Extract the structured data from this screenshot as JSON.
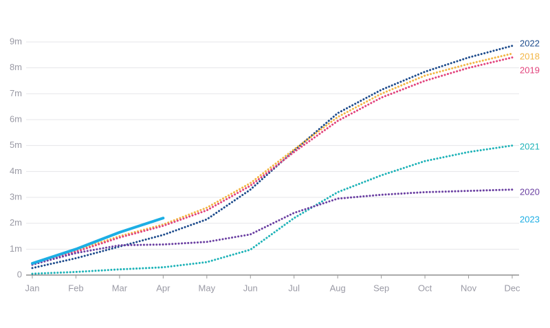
{
  "chart_data": {
    "type": "line",
    "categories": [
      "Jan",
      "Feb",
      "Mar",
      "Apr",
      "May",
      "Jun",
      "Jul",
      "Aug",
      "Sep",
      "Oct",
      "Nov",
      "Dec"
    ],
    "series": [
      {
        "name": "2022",
        "color": "#1d4b8c",
        "style": "dotted",
        "values": [
          0.27,
          0.65,
          1.1,
          1.55,
          2.15,
          3.3,
          4.8,
          6.25,
          7.15,
          7.85,
          8.4,
          8.85
        ]
      },
      {
        "name": "2018",
        "color": "#f2b544",
        "style": "dotted",
        "values": [
          0.4,
          0.95,
          1.5,
          1.95,
          2.6,
          3.55,
          4.85,
          6.1,
          7.0,
          7.7,
          8.15,
          8.55
        ]
      },
      {
        "name": "2019",
        "color": "#e2437c",
        "style": "dotted",
        "values": [
          0.4,
          0.9,
          1.45,
          1.9,
          2.5,
          3.45,
          4.75,
          5.95,
          6.85,
          7.5,
          8.0,
          8.4
        ]
      },
      {
        "name": "2021",
        "color": "#1fb3b8",
        "style": "dotted",
        "values": [
          0.05,
          0.12,
          0.22,
          0.3,
          0.5,
          0.98,
          2.2,
          3.2,
          3.85,
          4.4,
          4.75,
          5.0
        ]
      },
      {
        "name": "2020",
        "color": "#6b40a2",
        "style": "dotted",
        "values": [
          0.4,
          0.85,
          1.15,
          1.18,
          1.28,
          1.57,
          2.4,
          2.95,
          3.1,
          3.2,
          3.25,
          3.3
        ]
      },
      {
        "name": "2023",
        "color": "#1caee4",
        "style": "solid",
        "values": [
          0.45,
          1.0,
          1.65,
          2.2,
          null,
          null,
          null,
          null,
          null,
          null,
          null,
          null
        ]
      }
    ],
    "ylim": [
      0,
      9
    ],
    "yticks": [
      0,
      {
        "value": 1,
        "label": "1m"
      },
      {
        "value": 2,
        "label": "2m"
      },
      {
        "value": 3,
        "label": "3m"
      },
      {
        "value": 4,
        "label": "4m"
      },
      {
        "value": 5,
        "label": "5m"
      },
      {
        "value": 6,
        "label": "6m"
      },
      {
        "value": 7,
        "label": "7m"
      },
      {
        "value": 8,
        "label": "8m"
      },
      {
        "value": 9,
        "label": "9m"
      }
    ],
    "grid": true
  }
}
